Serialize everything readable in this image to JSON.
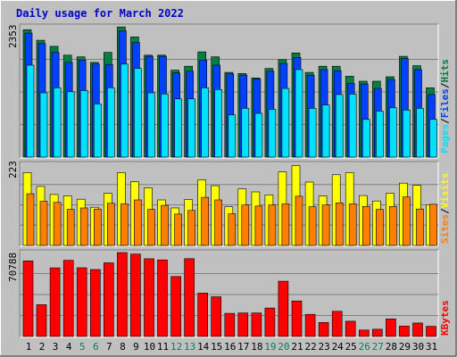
{
  "title": "Daily usage for March 2022",
  "colors": {
    "hits": "#008040",
    "files": "#0040ff",
    "pages": "#00e0ff",
    "visits": "#ffff00",
    "sites": "#ff8000",
    "kbytes": "#ff0000",
    "weekday": "#000000",
    "weekend": "#00805c",
    "panel": "#c0c0c0",
    "title": "#0000cc"
  },
  "right_labels": {
    "pages": "Pages",
    "files": "Files",
    "hits": "Hits",
    "sites": "Sites",
    "visits": "Visits",
    "kbytes": "KBytes",
    "sep": "/"
  },
  "chart_data": {
    "type": "bar",
    "x_label": "",
    "days": [
      "1",
      "2",
      "3",
      "4",
      "5",
      "6",
      "7",
      "8",
      "9",
      "10",
      "11",
      "12",
      "13",
      "14",
      "15",
      "16",
      "17",
      "18",
      "19",
      "20",
      "21",
      "22",
      "23",
      "24",
      "25",
      "26",
      "27",
      "28",
      "29",
      "30",
      "31"
    ],
    "weekend_days": [
      "5",
      "6",
      "12",
      "13",
      "19",
      "20",
      "26",
      "27"
    ],
    "panels": [
      {
        "id": "usage",
        "ymax_label": "2353",
        "ylim": [
          0,
          2353
        ],
        "series": [
          {
            "name": "Hits",
            "color": "#008040",
            "values": [
              2300,
              2110,
              2000,
              1840,
              1810,
              1710,
              1890,
              2350,
              2170,
              1840,
              1840,
              1570,
              1640,
              1900,
              1810,
              1530,
              1510,
              1430,
              1600,
              1760,
              1880,
              1530,
              1640,
              1640,
              1460,
              1370,
              1370,
              1450,
              1820,
              1650,
              1250
            ]
          },
          {
            "name": "Files",
            "color": "#0040ff",
            "values": [
              2240,
              2050,
              1890,
              1710,
              1750,
              1680,
              1670,
              2280,
              2070,
              1820,
              1820,
              1520,
              1550,
              1750,
              1660,
              1500,
              1480,
              1410,
              1550,
              1690,
              1800,
              1480,
              1580,
              1560,
              1330,
              1320,
              1240,
              1400,
              1780,
              1580,
              1130
            ]
          },
          {
            "name": "Pages",
            "color": "#00e0ff",
            "values": [
              1660,
              1160,
              1250,
              1180,
              1200,
              960,
              1250,
              1680,
              1600,
              1160,
              1140,
              1050,
              1050,
              1250,
              1220,
              760,
              880,
              790,
              860,
              1240,
              1580,
              880,
              940,
              1130,
              1140,
              680,
              830,
              890,
              850,
              880,
              680
            ]
          }
        ]
      },
      {
        "id": "visitors",
        "ymax_label": "223",
        "ylim": [
          0,
          223
        ],
        "series": [
          {
            "name": "Visits",
            "color": "#ffff00",
            "values": [
              200,
              162,
              140,
              136,
              127,
              105,
              143,
              200,
              175,
              158,
              125,
              103,
              126,
              180,
              164,
              106,
              155,
              147,
              139,
              202,
              219,
              174,
              136,
              194,
              200,
              137,
              122,
              143,
              171,
              165,
              112
            ]
          },
          {
            "name": "Sites",
            "color": "#ff8000",
            "values": [
              142,
              121,
              118,
              99,
              103,
              100,
              116,
              114,
              125,
              99,
              110,
              86,
              96,
              132,
              125,
              87,
              111,
              108,
              111,
              114,
              135,
              106,
              111,
              117,
              114,
              107,
              99,
              107,
              133,
              100,
              113
            ]
          }
        ]
      },
      {
        "id": "kbytes",
        "ymax_label": "70788",
        "ylim": [
          0,
          70788
        ],
        "series": [
          {
            "name": "KBytes",
            "color": "#ff0000",
            "values": [
              63800,
              26800,
              57900,
              64200,
              58000,
              56500,
              62100,
              70790,
              69500,
              65600,
              64600,
              50600,
              65700,
              36600,
              33500,
              19500,
              19800,
              19800,
              24000,
              46600,
              30000,
              18700,
              11800,
              21200,
              12900,
              5400,
              6100,
              14800,
              8700,
              11400,
              8600
            ]
          }
        ]
      }
    ]
  }
}
